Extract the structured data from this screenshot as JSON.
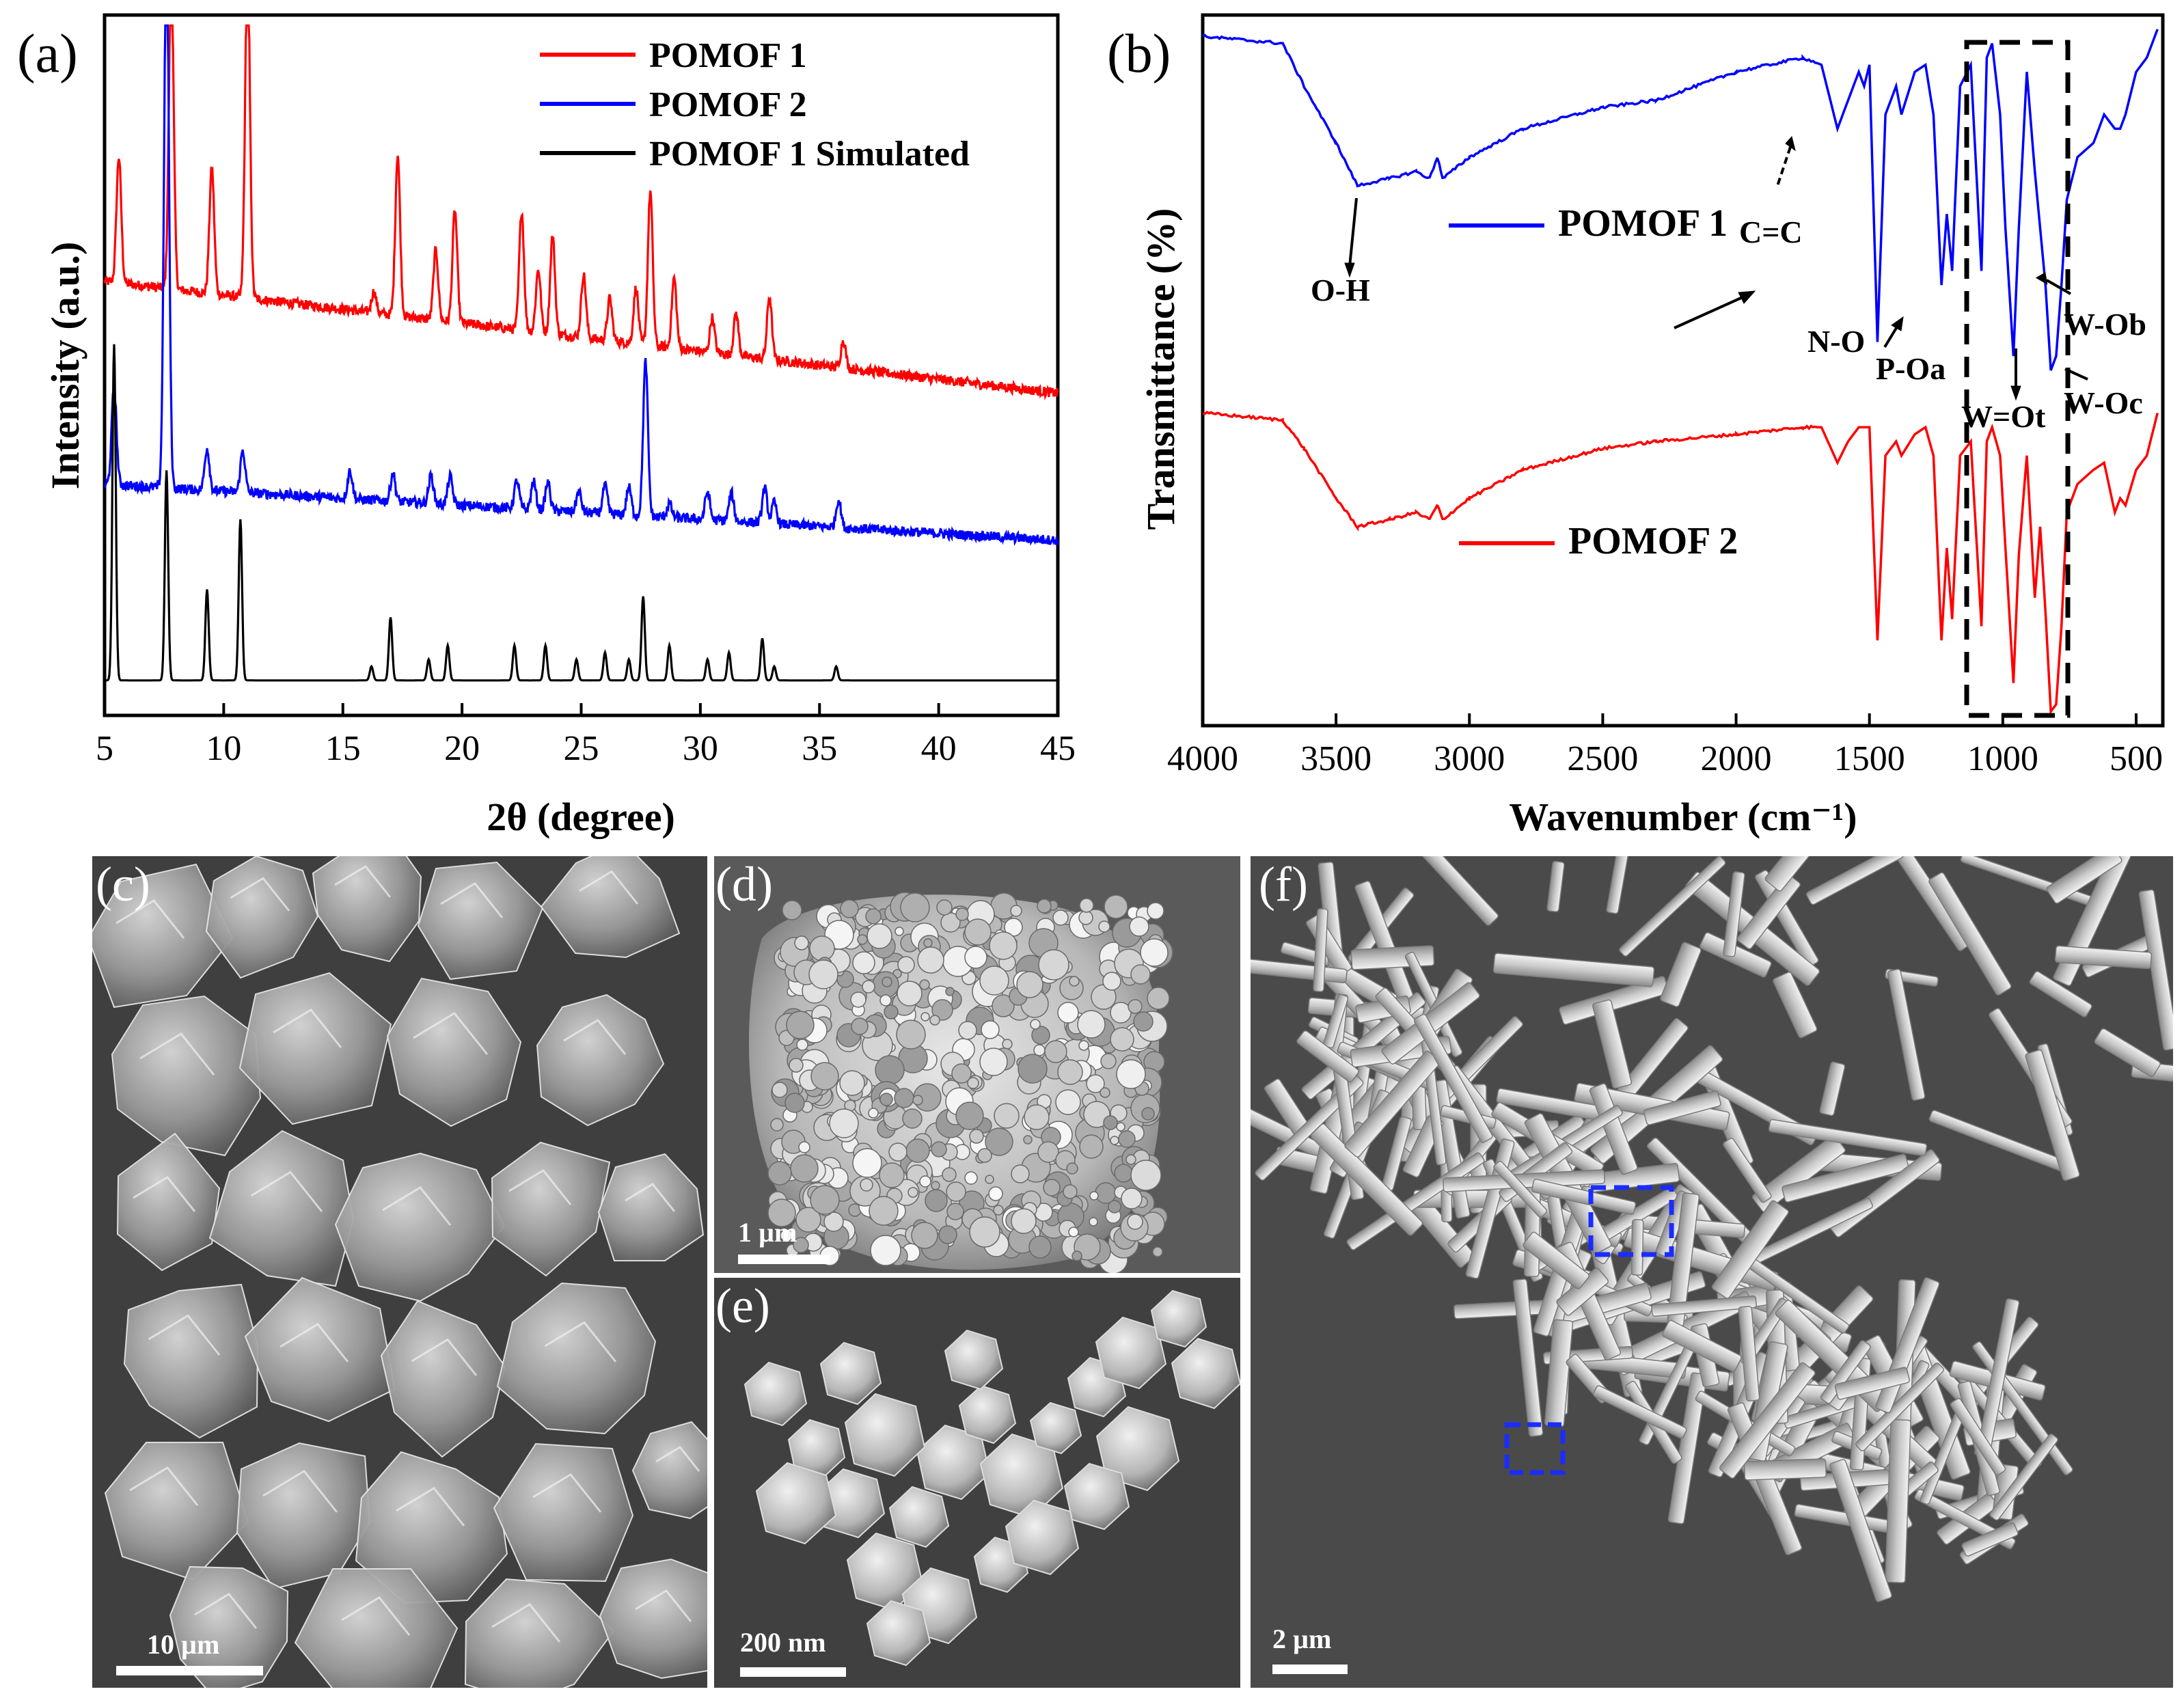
{
  "panel_a": {
    "label": "(a)",
    "chart_data": {
      "type": "line",
      "xlabel": "2θ (degree)",
      "ylabel": "Intensity (a.u.)",
      "xlim": [
        5,
        45
      ],
      "xticks": [
        5,
        10,
        15,
        20,
        25,
        30,
        35,
        40,
        45
      ],
      "legend_position": "top-right",
      "series": [
        {
          "name": "POMOF 1",
          "color": "#ff0000",
          "baseline": 0.62,
          "drift": -0.16,
          "peaks": [
            [
              5.6,
              0.18
            ],
            [
              7.8,
              0.45
            ],
            [
              9.5,
              0.18
            ],
            [
              11.0,
              0.48
            ],
            [
              16.3,
              0.03
            ],
            [
              17.3,
              0.23
            ],
            [
              18.9,
              0.1
            ],
            [
              19.7,
              0.16
            ],
            [
              22.5,
              0.17
            ],
            [
              23.2,
              0.09
            ],
            [
              23.8,
              0.14
            ],
            [
              25.1,
              0.09
            ],
            [
              26.2,
              0.06
            ],
            [
              27.3,
              0.08
            ],
            [
              27.9,
              0.22
            ],
            [
              28.9,
              0.1
            ],
            [
              30.5,
              0.05
            ],
            [
              31.5,
              0.06
            ],
            [
              32.9,
              0.09
            ],
            [
              36.0,
              0.04
            ]
          ]
        },
        {
          "name": "POMOF 2",
          "color": "#0000ff",
          "baseline": 0.33,
          "drift": -0.08,
          "peaks": [
            [
              5.4,
              0.14
            ],
            [
              7.6,
              0.8
            ],
            [
              9.3,
              0.06
            ],
            [
              10.8,
              0.06
            ],
            [
              15.3,
              0.04
            ],
            [
              17.1,
              0.04
            ],
            [
              18.7,
              0.04
            ],
            [
              19.5,
              0.04
            ],
            [
              22.3,
              0.04
            ],
            [
              23.0,
              0.04
            ],
            [
              23.6,
              0.04
            ],
            [
              24.9,
              0.03
            ],
            [
              26.0,
              0.04
            ],
            [
              27.0,
              0.04
            ],
            [
              27.7,
              0.22
            ],
            [
              28.7,
              0.02
            ],
            [
              30.3,
              0.04
            ],
            [
              31.3,
              0.04
            ],
            [
              32.7,
              0.05
            ],
            [
              33.1,
              0.03
            ],
            [
              35.8,
              0.04
            ]
          ]
        },
        {
          "name": "POMOF 1 Simulated",
          "color": "#000000",
          "baseline": 0.05,
          "drift": 0.0,
          "peaks": [
            [
              5.4,
              0.48
            ],
            [
              7.6,
              0.3
            ],
            [
              9.3,
              0.13
            ],
            [
              10.7,
              0.23
            ],
            [
              16.2,
              0.02
            ],
            [
              17.0,
              0.09
            ],
            [
              18.6,
              0.03
            ],
            [
              19.4,
              0.05
            ],
            [
              22.2,
              0.05
            ],
            [
              23.5,
              0.05
            ],
            [
              24.8,
              0.03
            ],
            [
              26.0,
              0.04
            ],
            [
              27.0,
              0.03
            ],
            [
              27.6,
              0.12
            ],
            [
              28.7,
              0.05
            ],
            [
              30.3,
              0.03
            ],
            [
              31.2,
              0.04
            ],
            [
              32.6,
              0.06
            ],
            [
              33.1,
              0.02
            ],
            [
              35.7,
              0.02
            ]
          ]
        }
      ]
    }
  },
  "panel_b": {
    "label": "(b)",
    "chart_data": {
      "type": "line",
      "xlabel": "Wavenumber (cm⁻¹)",
      "ylabel": "Transmittance (%)",
      "xlim": [
        4000,
        400
      ],
      "x_reversed": true,
      "xticks": [
        4000,
        3500,
        3000,
        2500,
        2000,
        1500,
        1000,
        500
      ],
      "series": [
        {
          "name": "POMOF 1",
          "color": "#0000ff",
          "baseline": 0.97,
          "points": [
            [
              4000,
              0.97
            ],
            [
              3700,
              0.96
            ],
            [
              3620,
              0.9
            ],
            [
              3500,
              0.82
            ],
            [
              3420,
              0.76
            ],
            [
              3300,
              0.77
            ],
            [
              3200,
              0.78
            ],
            [
              3150,
              0.77
            ],
            [
              3120,
              0.8
            ],
            [
              3100,
              0.77
            ],
            [
              3000,
              0.8
            ],
            [
              2800,
              0.84
            ],
            [
              2500,
              0.87
            ],
            [
              2300,
              0.88
            ],
            [
              2000,
              0.92
            ],
            [
              1750,
              0.94
            ],
            [
              1680,
              0.93
            ],
            [
              1620,
              0.84
            ],
            [
              1580,
              0.88
            ],
            [
              1540,
              0.92
            ],
            [
              1520,
              0.9
            ],
            [
              1500,
              0.93
            ],
            [
              1470,
              0.54
            ],
            [
              1440,
              0.86
            ],
            [
              1400,
              0.9
            ],
            [
              1380,
              0.86
            ],
            [
              1330,
              0.92
            ],
            [
              1290,
              0.93
            ],
            [
              1260,
              0.86
            ],
            [
              1230,
              0.62
            ],
            [
              1210,
              0.72
            ],
            [
              1190,
              0.64
            ],
            [
              1160,
              0.9
            ],
            [
              1120,
              0.93
            ],
            [
              1080,
              0.64
            ],
            [
              1060,
              0.94
            ],
            [
              1040,
              0.96
            ],
            [
              1010,
              0.86
            ],
            [
              990,
              0.7
            ],
            [
              960,
              0.52
            ],
            [
              940,
              0.7
            ],
            [
              910,
              0.92
            ],
            [
              880,
              0.78
            ],
            [
              860,
              0.7
            ],
            [
              840,
              0.62
            ],
            [
              820,
              0.5
            ],
            [
              800,
              0.52
            ],
            [
              780,
              0.62
            ],
            [
              760,
              0.74
            ],
            [
              720,
              0.8
            ],
            [
              660,
              0.82
            ],
            [
              620,
              0.86
            ],
            [
              580,
              0.84
            ],
            [
              560,
              0.84
            ],
            [
              540,
              0.86
            ],
            [
              500,
              0.92
            ],
            [
              460,
              0.94
            ],
            [
              420,
              0.98
            ]
          ]
        },
        {
          "name": "POMOF 2",
          "color": "#ff0000",
          "baseline": 0.44,
          "points": [
            [
              4000,
              0.44
            ],
            [
              3700,
              0.43
            ],
            [
              3620,
              0.39
            ],
            [
              3500,
              0.32
            ],
            [
              3420,
              0.28
            ],
            [
              3300,
              0.29
            ],
            [
              3200,
              0.3
            ],
            [
              3150,
              0.29
            ],
            [
              3120,
              0.31
            ],
            [
              3100,
              0.29
            ],
            [
              3000,
              0.32
            ],
            [
              2800,
              0.36
            ],
            [
              2500,
              0.39
            ],
            [
              2300,
              0.4
            ],
            [
              2000,
              0.41
            ],
            [
              1750,
              0.42
            ],
            [
              1680,
              0.42
            ],
            [
              1620,
              0.37
            ],
            [
              1580,
              0.4
            ],
            [
              1540,
              0.42
            ],
            [
              1500,
              0.42
            ],
            [
              1470,
              0.12
            ],
            [
              1440,
              0.38
            ],
            [
              1400,
              0.4
            ],
            [
              1380,
              0.38
            ],
            [
              1330,
              0.41
            ],
            [
              1290,
              0.42
            ],
            [
              1260,
              0.38
            ],
            [
              1230,
              0.12
            ],
            [
              1210,
              0.25
            ],
            [
              1190,
              0.15
            ],
            [
              1160,
              0.38
            ],
            [
              1120,
              0.4
            ],
            [
              1080,
              0.14
            ],
            [
              1060,
              0.4
            ],
            [
              1040,
              0.42
            ],
            [
              1010,
              0.38
            ],
            [
              990,
              0.25
            ],
            [
              960,
              0.06
            ],
            [
              940,
              0.24
            ],
            [
              910,
              0.38
            ],
            [
              880,
              0.18
            ],
            [
              860,
              0.28
            ],
            [
              840,
              0.16
            ],
            [
              820,
              0.02
            ],
            [
              800,
              0.03
            ],
            [
              780,
              0.14
            ],
            [
              760,
              0.3
            ],
            [
              720,
              0.34
            ],
            [
              660,
              0.36
            ],
            [
              620,
              0.37
            ],
            [
              580,
              0.3
            ],
            [
              560,
              0.32
            ],
            [
              540,
              0.31
            ],
            [
              500,
              0.36
            ],
            [
              460,
              0.38
            ],
            [
              420,
              0.44
            ]
          ]
        }
      ],
      "annotations": [
        "O-H",
        "C=C",
        "N-O",
        "P-Oa",
        "W=Ot",
        "W-Ob",
        "W-Oc"
      ]
    }
  },
  "panel_c": {
    "label": "(c)",
    "scale_bar": "10 µm"
  },
  "panel_d": {
    "label": "(d)",
    "scale_bar": "1 µm"
  },
  "panel_e": {
    "label": "(e)",
    "scale_bar": "200 nm"
  },
  "panel_f": {
    "label": "(f)",
    "scale_bar": "2 µm"
  }
}
